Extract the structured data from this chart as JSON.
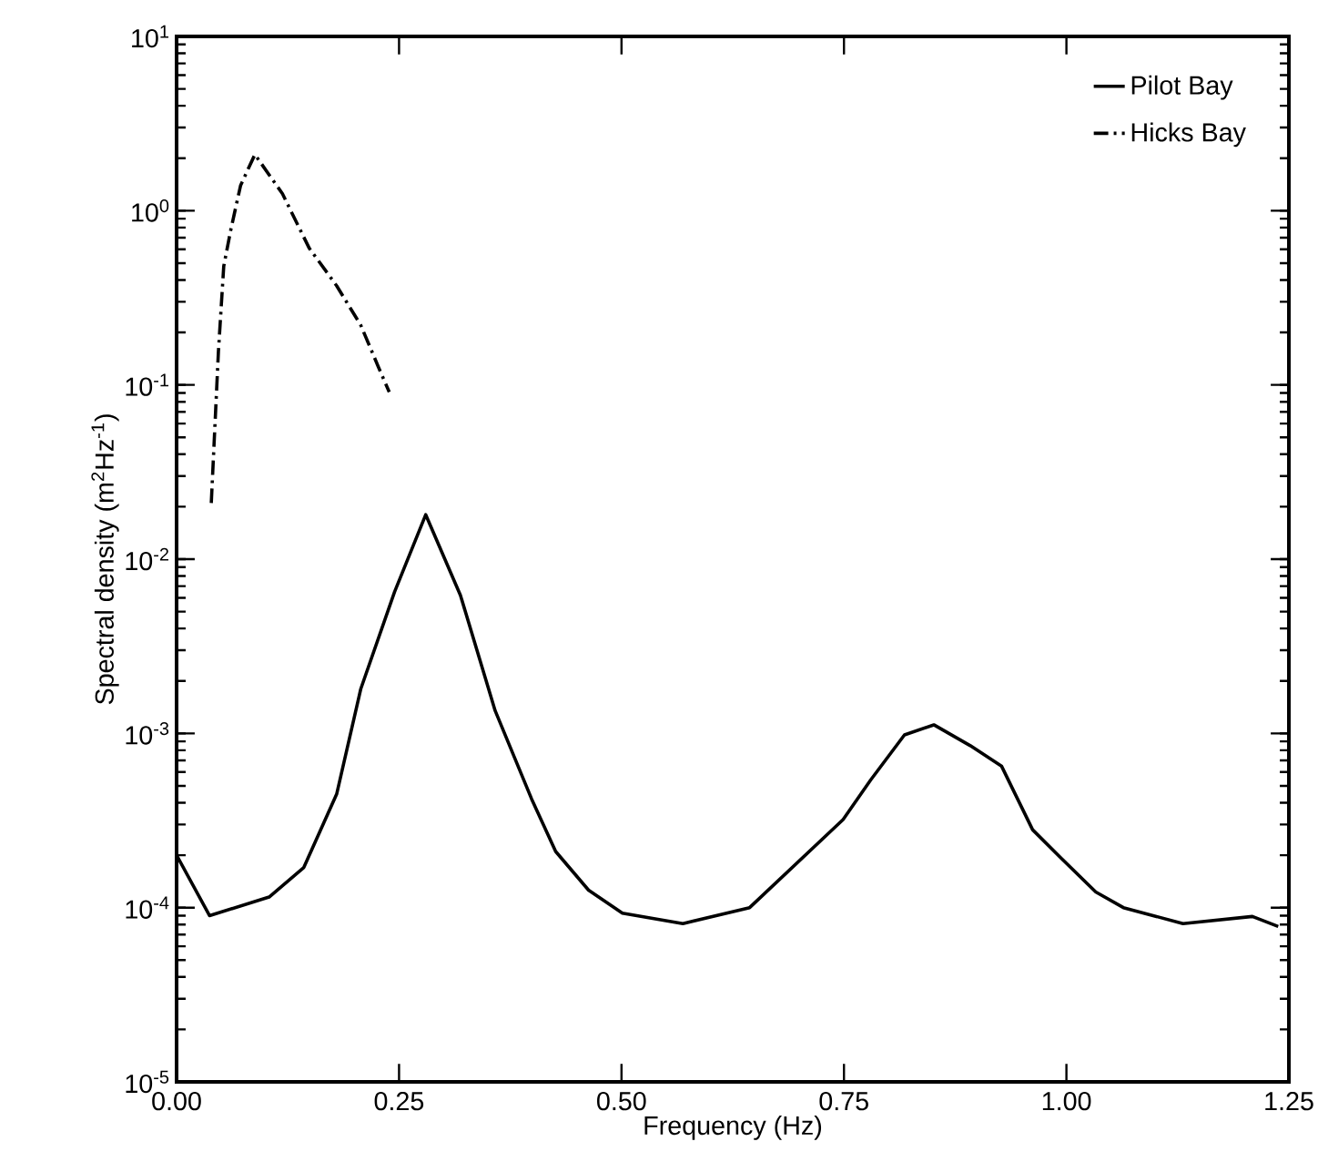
{
  "chart_data": {
    "type": "line",
    "xlabel": "Frequency (Hz)",
    "ylabel": "Spectral density (m$^{2}$Hz$^{-1}$)",
    "log": "y",
    "xlim": [
      0,
      1.25
    ],
    "ylim": [
      1e-05,
      10
    ],
    "xticks": [
      {
        "value": 0,
        "label": "0.00"
      },
      0.25,
      {
        "value": 0.5,
        "label": "0.50"
      },
      0.75,
      {
        "value": 1.0,
        "label": "1.00"
      },
      1.25
    ],
    "yticks": [
      {
        "value": 1e-05,
        "label": "10$^{-5}$"
      },
      {
        "value": 0.0001,
        "label": "10$^{-4}$"
      },
      {
        "value": 0.001,
        "label": "10$^{-3}$"
      },
      {
        "value": 0.01,
        "label": "10$^{-2}$"
      },
      {
        "value": 0.1,
        "label": "10$^{-1}$"
      },
      {
        "value": 1,
        "label": "10$^{0}$"
      },
      {
        "value": 10,
        "label": "10$^{1}$"
      }
    ],
    "grid": false,
    "legend": "top right",
    "marker": "none",
    "series": [
      {
        "name": "Pilot Bay",
        "color": "#000000",
        "line_style": "solid",
        "x": [
          0,
          0.037,
          0.104,
          0.143,
          0.18,
          0.207,
          0.245,
          0.28,
          0.319,
          0.358,
          0.399,
          0.426,
          0.463,
          0.501,
          0.569,
          0.644,
          0.749,
          0.78,
          0.818,
          0.851,
          0.892,
          0.927,
          0.962,
          0.995,
          1.033,
          1.064,
          1.131,
          1.209,
          1.238
        ],
        "values": [
          0.0002,
          9e-05,
          0.000115,
          0.00017,
          0.00045,
          0.0018,
          0.0065,
          0.018,
          0.0062,
          0.00135,
          0.00042,
          0.00021,
          0.000126,
          9.3e-05,
          8.1e-05,
          0.0001,
          0.00032,
          0.00054,
          0.00098,
          0.00112,
          0.00085,
          0.00065,
          0.00028,
          0.00019,
          0.000123,
          0.0001,
          8.1e-05,
          8.9e-05,
          7.8e-05
        ]
      },
      {
        "name": "Hicks Bay",
        "color": "#000000",
        "line_style": "dashdot",
        "x": [
          0.039,
          0.047,
          0.053,
          0.061,
          0.072,
          0.088,
          0.119,
          0.149,
          0.18,
          0.207,
          0.227,
          0.239
        ],
        "values": [
          0.021,
          0.155,
          0.48,
          0.78,
          1.4,
          2.1,
          1.25,
          0.61,
          0.37,
          0.22,
          0.126,
          0.091
        ]
      }
    ]
  }
}
